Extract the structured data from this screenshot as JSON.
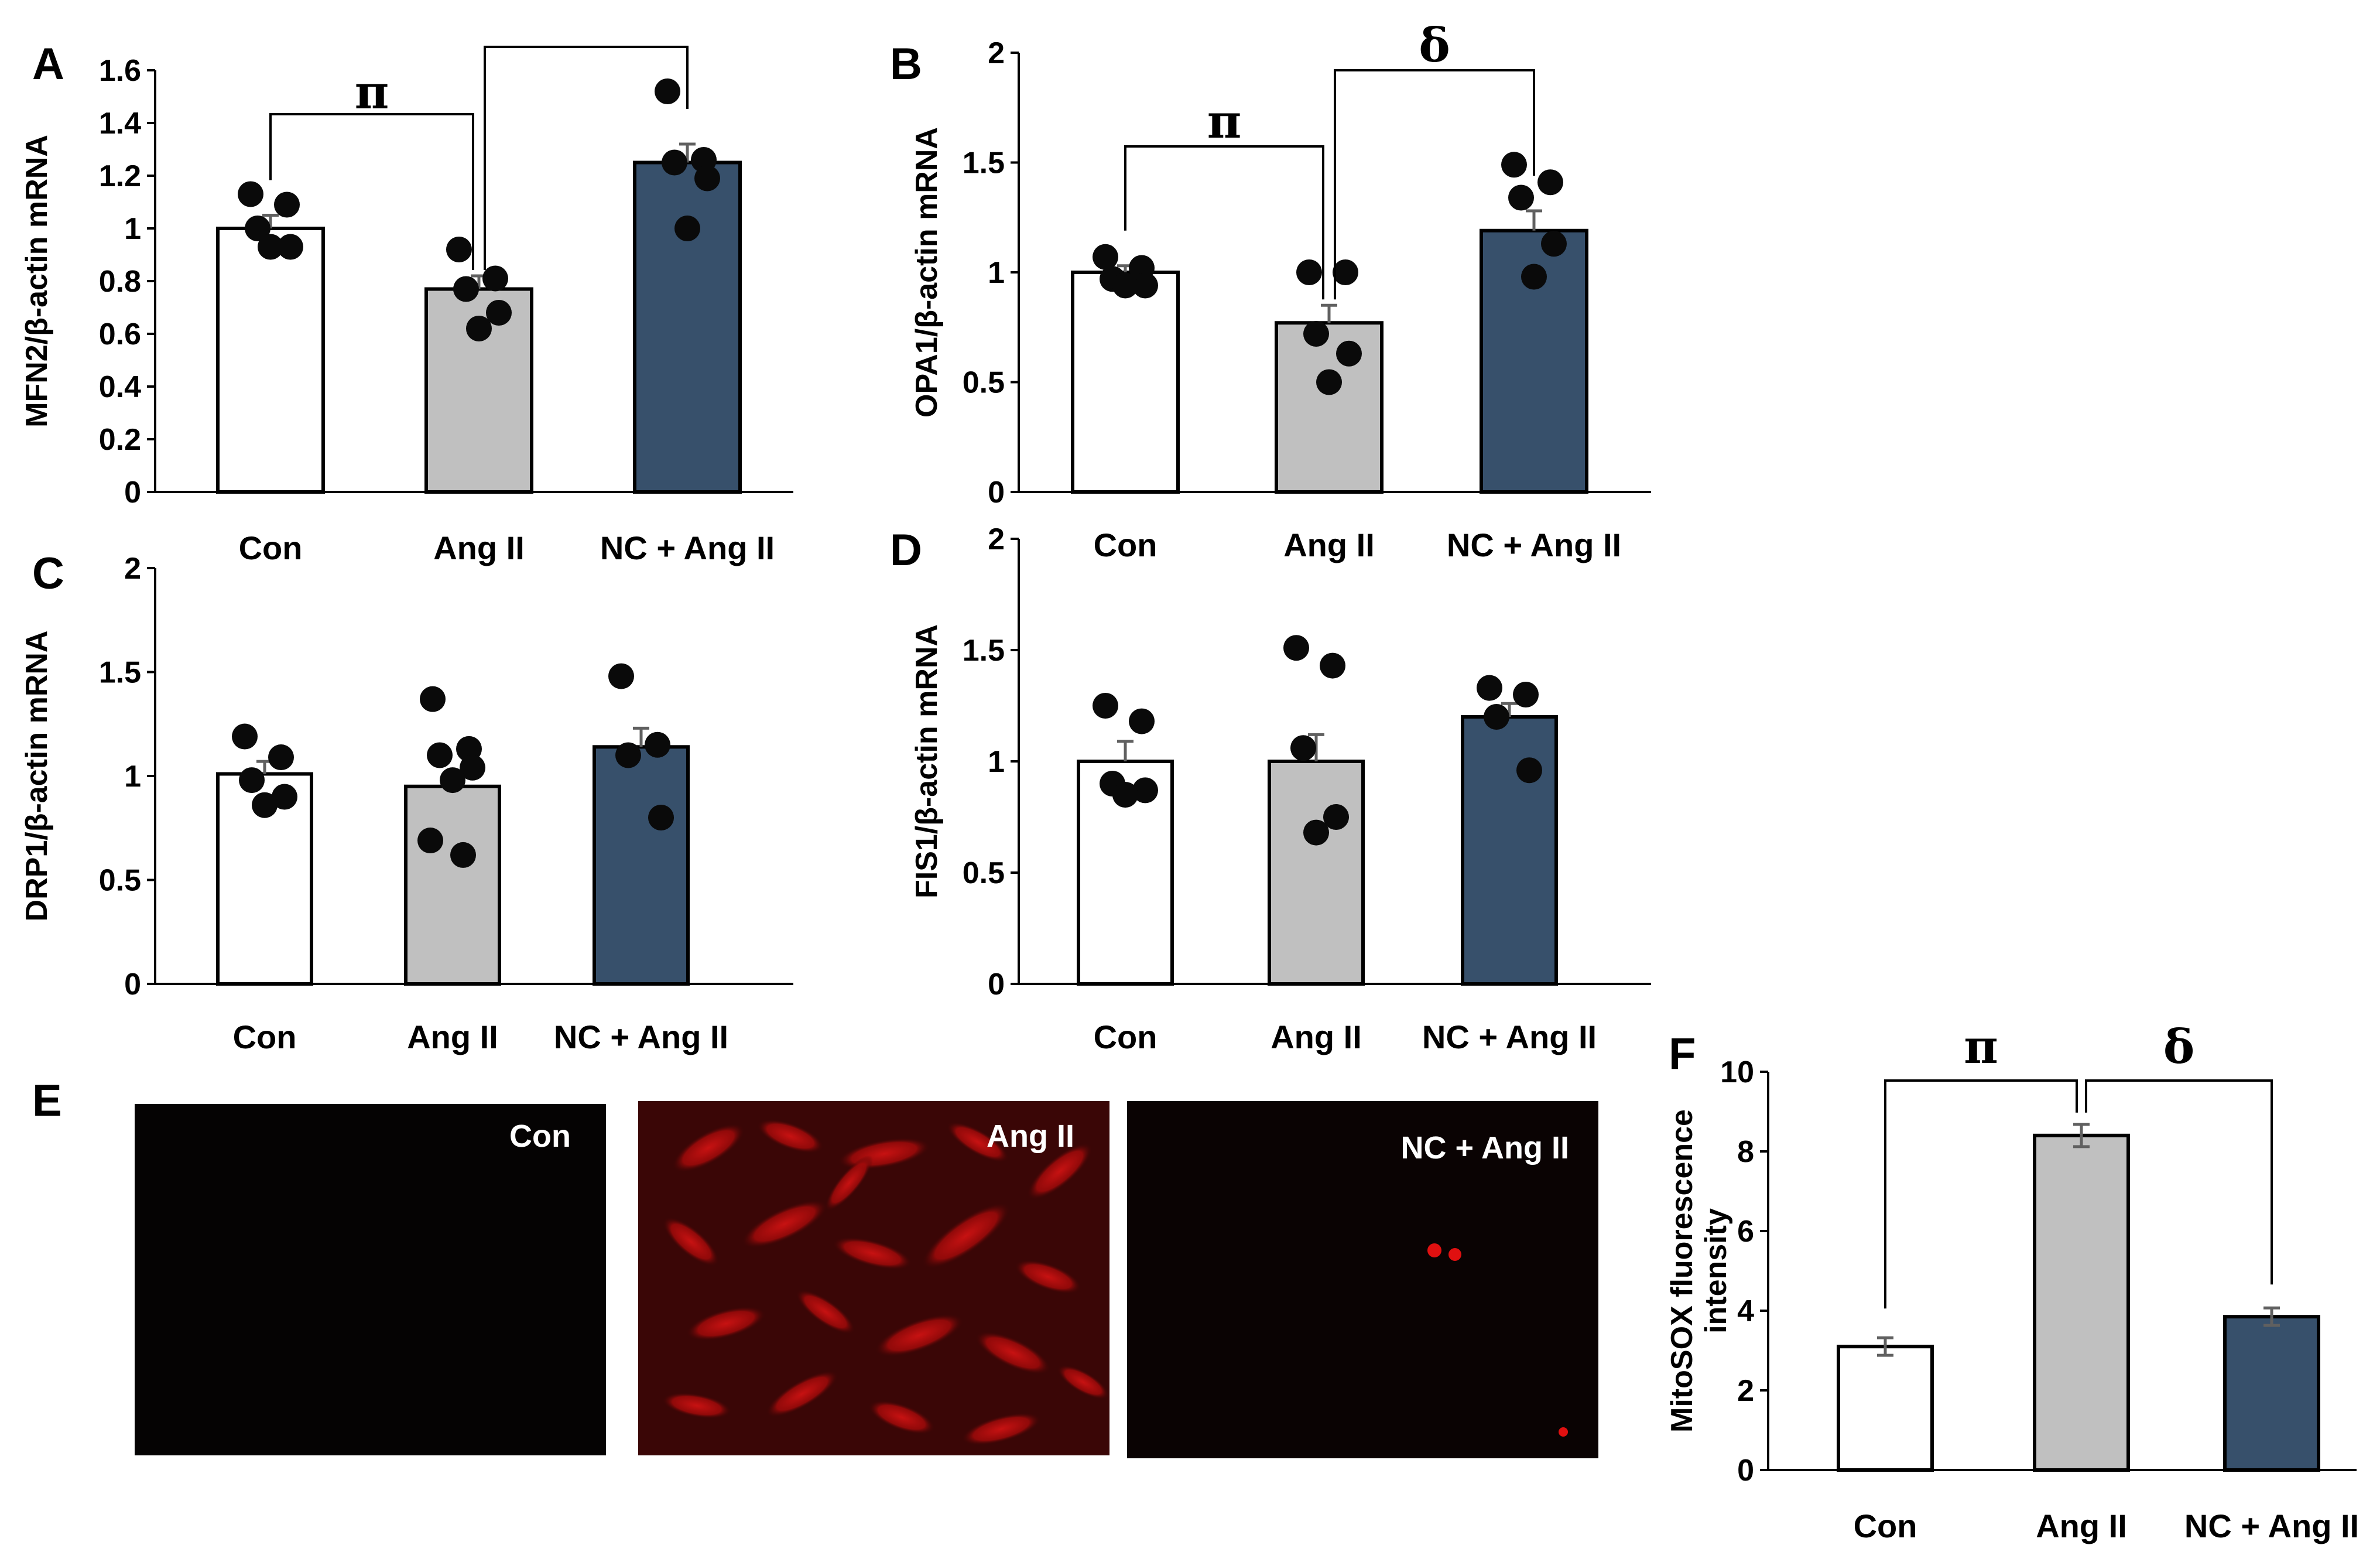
{
  "chart_data": [
    {
      "panel": "A",
      "type": "bar",
      "categories": [
        "Con",
        "Ang II",
        "NC + Ang II"
      ],
      "values": [
        1.0,
        0.77,
        1.25
      ],
      "errors": [
        0.05,
        0.05,
        0.07
      ],
      "points": [
        [
          1.13,
          1.09,
          1.0,
          0.93,
          0.93
        ],
        [
          0.92,
          0.81,
          0.77,
          0.68,
          0.62
        ],
        [
          1.52,
          1.26,
          1.25,
          1.19,
          1.0
        ]
      ],
      "ylabel": "MFN2/β-actin mRNA",
      "ylim": [
        0,
        1.6
      ],
      "yticks": [
        "0",
        "0.2",
        "0.4",
        "0.6",
        "0.8",
        "1",
        "1.2",
        "1.4",
        "1.6"
      ],
      "significance": [
        {
          "from": "Con",
          "to": "Ang II",
          "symbol": "π"
        },
        {
          "from": "Ang II",
          "to": "NC + Ang II",
          "symbol": ""
        }
      ]
    },
    {
      "panel": "B",
      "type": "bar",
      "categories": [
        "Con",
        "Ang II",
        "NC + Ang II"
      ],
      "values": [
        1.0,
        0.77,
        1.19
      ],
      "errors": [
        0.03,
        0.08,
        0.09
      ],
      "points": [
        [
          1.07,
          1.02,
          0.97,
          0.94,
          0.94
        ],
        [
          1.0,
          1.0,
          0.72,
          0.63,
          0.5
        ],
        [
          1.49,
          1.41,
          1.34,
          1.13,
          0.98
        ]
      ],
      "ylabel": "OPA1/β-actin mRNA",
      "ylim": [
        0,
        2
      ],
      "yticks": [
        "0",
        "0.5",
        "1",
        "1.5",
        "2"
      ],
      "significance": [
        {
          "from": "Con",
          "to": "Ang II",
          "symbol": "π"
        },
        {
          "from": "Ang II",
          "to": "NC + Ang II",
          "symbol": "δ"
        }
      ]
    },
    {
      "panel": "C",
      "type": "bar",
      "categories": [
        "Con",
        "Ang II",
        "NC + Ang II"
      ],
      "values": [
        1.01,
        0.95,
        1.14
      ],
      "errors": [
        0.06,
        0.07,
        0.09
      ],
      "points": [
        [
          1.19,
          1.09,
          0.98,
          0.9,
          0.86
        ],
        [
          1.37,
          1.13,
          1.1,
          1.04,
          0.98,
          0.69,
          0.62
        ],
        [
          1.48,
          1.15,
          1.1,
          0.8
        ]
      ],
      "ylabel": "DRP1/β-actin mRNA",
      "ylim": [
        0,
        2
      ],
      "yticks": [
        "0",
        "0.5",
        "1",
        "1.5",
        "2"
      ],
      "significance": []
    },
    {
      "panel": "D",
      "type": "bar",
      "categories": [
        "Con",
        "Ang II",
        "NC + Ang II"
      ],
      "values": [
        1.0,
        1.0,
        1.2
      ],
      "errors": [
        0.09,
        0.12,
        0.06
      ],
      "points": [
        [
          1.25,
          1.18,
          0.9,
          0.87,
          0.85
        ],
        [
          1.51,
          1.43,
          1.06,
          0.75,
          0.68
        ],
        [
          1.33,
          1.3,
          1.2,
          0.96
        ]
      ],
      "ylabel": "FIS1/β-actin mRNA",
      "ylim": [
        0,
        2
      ],
      "yticks": [
        "0",
        "0.5",
        "1",
        "1.5",
        "2"
      ],
      "significance": []
    },
    {
      "panel": "F",
      "type": "bar",
      "categories": [
        "Con",
        "Ang II",
        "NC + Ang II"
      ],
      "values": [
        3.1,
        8.4,
        3.85
      ],
      "errors": [
        0.22,
        0.28,
        0.22
      ],
      "points": [],
      "ylabel": "MitoSOX fluorescence intensity",
      "ylim": [
        0,
        10
      ],
      "yticks": [
        "0",
        "2",
        "4",
        "6",
        "8",
        "10"
      ],
      "significance": [
        {
          "from": "Con",
          "to": "Ang II",
          "symbol": "π"
        },
        {
          "from": "Ang II",
          "to": "NC + Ang II",
          "symbol": "δ"
        }
      ]
    }
  ],
  "colors": {
    "con": "#ffffff",
    "angII": "#c0c0c0",
    "ncAngII": "#37506b",
    "dot": "#0a0a0a",
    "error": "#606060"
  },
  "micrographs": {
    "panel": "E",
    "images": [
      {
        "label": "Con",
        "fill": "#050303"
      },
      {
        "label": "Ang II",
        "fill": "#3a0606"
      },
      {
        "label": "NC + Ang II",
        "fill": "#0a0303"
      }
    ]
  }
}
